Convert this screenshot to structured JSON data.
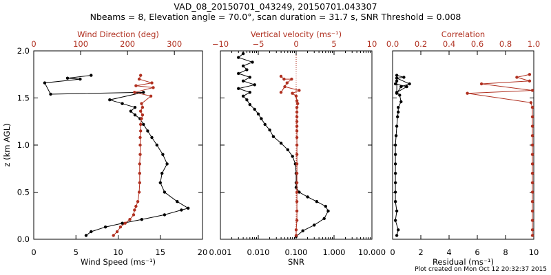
{
  "title_line1": "VAD_08_20150701_043249, 20150701.043307",
  "title_line2": "Nbeams = 8, Elevation angle = 70.0°, scan duration = 31.7 s, SNR Threshold = 0.008",
  "footer": "Plot created on Mon Oct 12 20:32:37 2015",
  "colors": {
    "black": "#000000",
    "red": "#b03020"
  },
  "chart_data": [
    {
      "type": "line",
      "panel": "wind",
      "ylabel": "z (km AGL)",
      "ylim": [
        0,
        2.0
      ],
      "yticks": [
        "0.0",
        "0.5",
        "1.0",
        "1.5",
        "2.0"
      ],
      "ytick_values": [
        0,
        0.5,
        1.0,
        1.5,
        2.0
      ],
      "bottom_axis": {
        "label": "Wind Speed (ms⁻¹)",
        "range": [
          0,
          20
        ],
        "ticks": [
          "0",
          "5",
          "10",
          "15",
          "20"
        ],
        "tick_values": [
          0,
          5,
          10,
          15,
          20
        ]
      },
      "top_axis": {
        "label": "Wind Direction (deg)",
        "range": [
          0,
          360
        ],
        "ticks": [
          "0",
          "100",
          "200",
          "300"
        ],
        "tick_values": [
          0,
          100,
          200,
          300
        ]
      },
      "series": [
        {
          "name": "Wind Speed",
          "axis": "bottom",
          "color": "black",
          "x": [
            6.2,
            6.8,
            8.5,
            10.5,
            12.8,
            15.5,
            17.5,
            18.3,
            17.0,
            15.5,
            15.0,
            15.2,
            15.8,
            15.3,
            14.6,
            14.0,
            13.5,
            13.0,
            12.6,
            12.0,
            11.5,
            12.0,
            10.5,
            9.0,
            13.0,
            2.0,
            1.3,
            5.5,
            4.0,
            6.8
          ],
          "y": [
            0.04,
            0.08,
            0.13,
            0.17,
            0.21,
            0.26,
            0.31,
            0.33,
            0.4,
            0.5,
            0.6,
            0.7,
            0.8,
            0.9,
            1.0,
            1.08,
            1.15,
            1.22,
            1.28,
            1.32,
            1.36,
            1.4,
            1.44,
            1.48,
            1.56,
            1.54,
            1.66,
            1.7,
            1.71,
            1.74
          ]
        },
        {
          "name": "Wind Direction",
          "axis": "top",
          "color": "red",
          "x": [
            170,
            178,
            185,
            195,
            205,
            213,
            215,
            218,
            222,
            225,
            226,
            226,
            226,
            227,
            227,
            227,
            228,
            228,
            230,
            232,
            228,
            232,
            230,
            250,
            215,
            255,
            218,
            252,
            225,
            228
          ],
          "y": [
            0.04,
            0.08,
            0.13,
            0.17,
            0.21,
            0.26,
            0.31,
            0.35,
            0.4,
            0.5,
            0.6,
            0.7,
            0.8,
            0.9,
            1.0,
            1.08,
            1.15,
            1.22,
            1.28,
            1.32,
            1.36,
            1.4,
            1.44,
            1.52,
            1.56,
            1.61,
            1.63,
            1.66,
            1.7,
            1.74
          ]
        }
      ]
    },
    {
      "type": "line",
      "panel": "snr",
      "ylim": [
        0,
        2.0
      ],
      "bottom_axis": {
        "label": "SNR",
        "scale": "log",
        "range": [
          0.001,
          10.0
        ],
        "ticks": [
          "0.001",
          "0.010",
          "0.100",
          "1.000",
          "10.000"
        ],
        "tick_values": [
          0.001,
          0.01,
          0.1,
          1.0,
          10.0
        ]
      },
      "top_axis": {
        "label": "Vertical velocity (ms⁻¹)",
        "range": [
          -10,
          10
        ],
        "ticks": [
          "−10",
          "−5",
          "0",
          "5",
          "10"
        ],
        "tick_values": [
          -10,
          -5,
          0,
          5,
          10
        ]
      },
      "reference_line": {
        "axis": "top",
        "value": 0,
        "style": "dotted",
        "color": "red"
      },
      "series": [
        {
          "name": "SNR",
          "axis": "bottom",
          "color": "black",
          "x": [
            0.1,
            0.15,
            0.3,
            0.55,
            0.7,
            0.6,
            0.35,
            0.2,
            0.12,
            0.1,
            0.1,
            0.1,
            0.095,
            0.08,
            0.06,
            0.04,
            0.025,
            0.02,
            0.015,
            0.012,
            0.01,
            0.008,
            0.006,
            0.005,
            0.004,
            0.006,
            0.003,
            0.008,
            0.004,
            0.006,
            0.003,
            0.005,
            0.004,
            0.007,
            0.003,
            0.004
          ],
          "y": [
            0.03,
            0.09,
            0.15,
            0.22,
            0.3,
            0.35,
            0.4,
            0.45,
            0.5,
            0.55,
            0.6,
            0.7,
            0.8,
            0.88,
            0.95,
            1.02,
            1.09,
            1.16,
            1.22,
            1.28,
            1.33,
            1.38,
            1.43,
            1.48,
            1.52,
            1.56,
            1.6,
            1.64,
            1.68,
            1.72,
            1.76,
            1.8,
            1.84,
            1.88,
            1.93,
            1.97
          ]
        },
        {
          "name": "Vertical velocity",
          "axis": "top",
          "color": "red",
          "x": [
            0,
            0,
            0.1,
            0.1,
            0.1,
            0.1,
            0.1,
            0.1,
            0.1,
            0.1,
            0.1,
            0.1,
            0.1,
            0.1,
            0.1,
            0.1,
            0.1,
            0.1,
            0.2,
            0.1,
            0,
            -0.5,
            0.4,
            -1.5,
            -2.0,
            -1.2,
            -0.6,
            -1.6,
            -2.0
          ],
          "y": [
            0.04,
            0.1,
            0.2,
            0.3,
            0.4,
            0.5,
            0.6,
            0.7,
            0.8,
            0.9,
            1.0,
            1.08,
            1.15,
            1.2,
            1.25,
            1.3,
            1.35,
            1.4,
            1.44,
            1.47,
            1.52,
            1.55,
            1.58,
            1.62,
            1.56,
            1.66,
            1.7,
            1.7,
            1.73
          ]
        }
      ]
    },
    {
      "type": "line",
      "panel": "residual",
      "ylim": [
        0,
        2.0
      ],
      "bottom_axis": {
        "label": "Residual (ms⁻¹)",
        "range": [
          0,
          10
        ],
        "ticks": [
          "0",
          "2",
          "4",
          "6",
          "8",
          "10"
        ],
        "tick_values": [
          0,
          2,
          4,
          6,
          8,
          10
        ]
      },
      "top_axis": {
        "label": "Correlation",
        "range": [
          0,
          1.0
        ],
        "ticks": [
          "0.0",
          "0.2",
          "0.4",
          "0.6",
          "0.8",
          "1.0"
        ],
        "tick_values": [
          0,
          0.2,
          0.4,
          0.6,
          0.8,
          1.0
        ]
      },
      "series": [
        {
          "name": "Residual",
          "axis": "bottom",
          "color": "black",
          "x": [
            0.3,
            0.4,
            0.2,
            0.3,
            0.2,
            0.2,
            0.2,
            0.2,
            0.2,
            0.2,
            0.2,
            0.25,
            0.3,
            0.35,
            0.4,
            0.4,
            0.6,
            0.5,
            0.3,
            1.0,
            0.2,
            0.3,
            0.3,
            0.6,
            1.2,
            0.3,
            0.8,
            0.3
          ],
          "y": [
            0.04,
            0.1,
            0.2,
            0.3,
            0.4,
            0.5,
            0.6,
            0.7,
            0.8,
            0.9,
            1.0,
            1.1,
            1.2,
            1.3,
            1.35,
            1.4,
            1.46,
            1.53,
            1.56,
            1.62,
            1.65,
            1.68,
            1.55,
            1.62,
            1.65,
            1.71,
            1.72,
            1.74
          ]
        },
        {
          "name": "Correlation",
          "axis": "top",
          "color": "red",
          "x": [
            0.99,
            0.99,
            0.99,
            0.99,
            0.99,
            0.99,
            0.99,
            0.99,
            0.99,
            0.99,
            0.99,
            0.99,
            0.99,
            0.99,
            0.99,
            0.98,
            0.53,
            0.99,
            0.63,
            0.97,
            0.88,
            0.97
          ],
          "y": [
            0.04,
            0.1,
            0.2,
            0.3,
            0.4,
            0.5,
            0.6,
            0.7,
            0.8,
            0.9,
            1.0,
            1.1,
            1.2,
            1.3,
            1.4,
            1.45,
            1.55,
            1.58,
            1.65,
            1.68,
            1.72,
            1.75
          ]
        }
      ]
    }
  ]
}
